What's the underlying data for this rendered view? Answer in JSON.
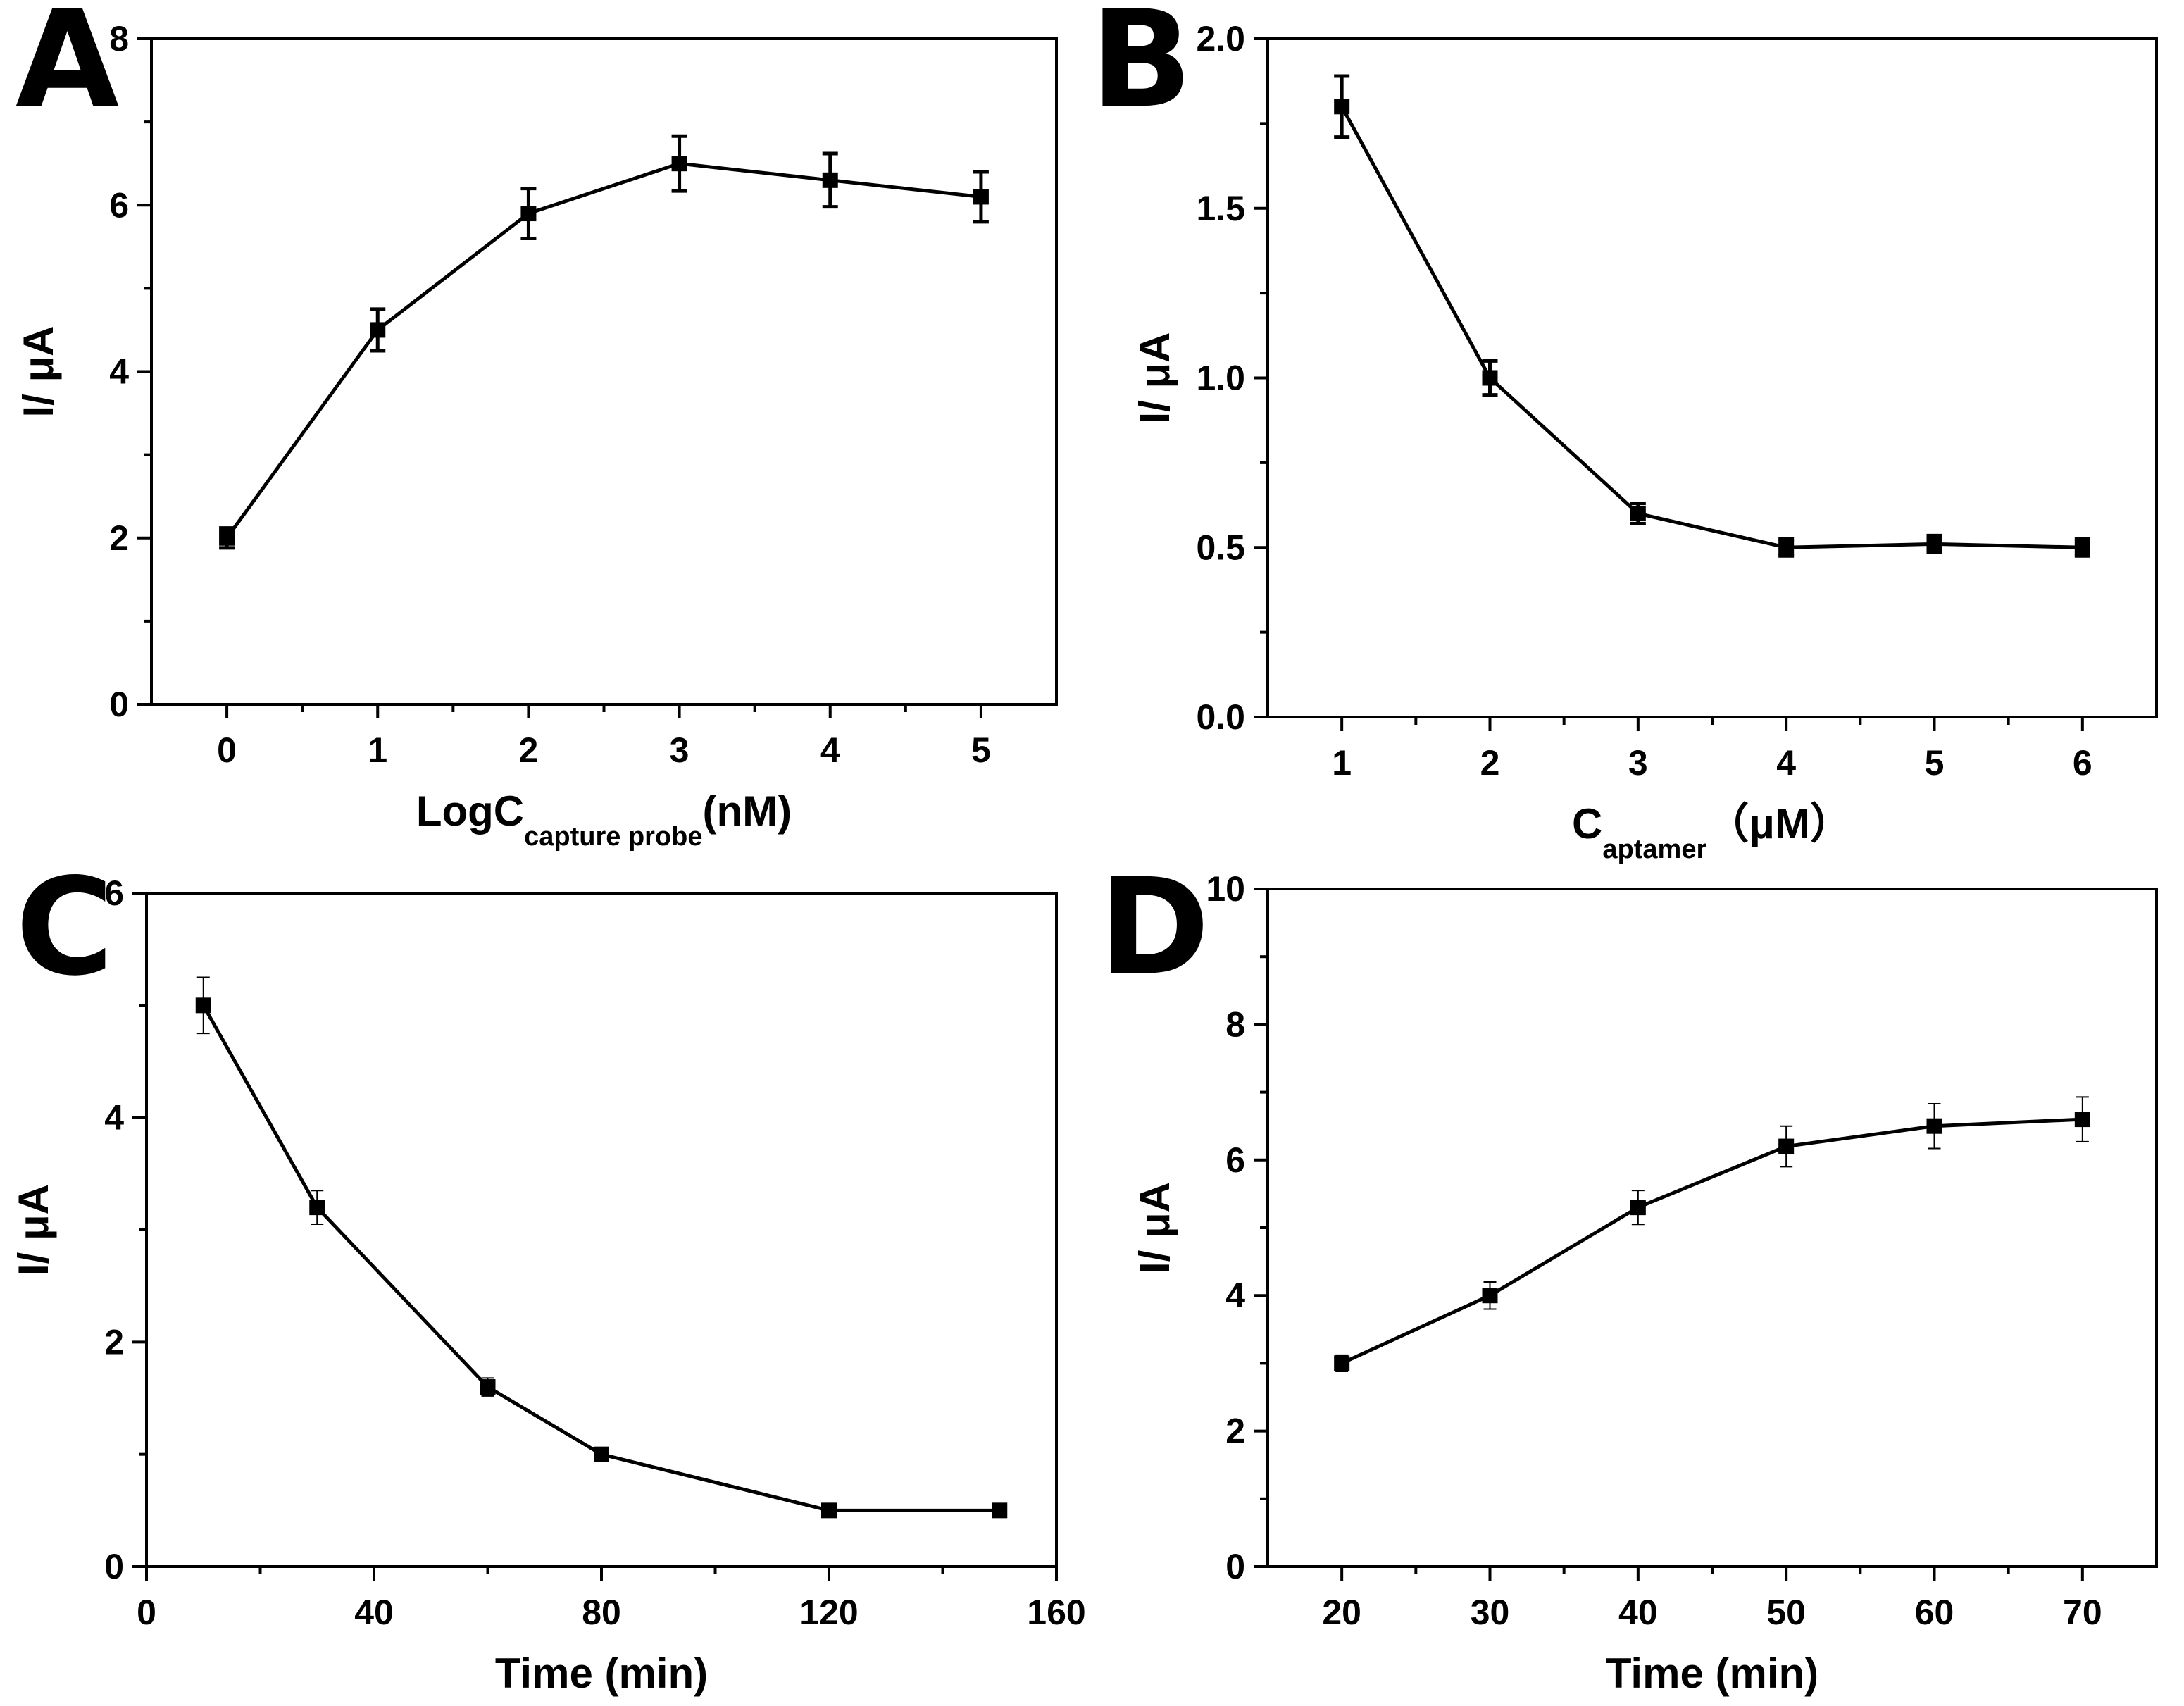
{
  "chart_data": [
    {
      "panel": "A",
      "type": "line",
      "x": [
        0,
        1,
        2,
        3,
        4,
        5
      ],
      "series": [
        {
          "name": "",
          "values": [
            2.0,
            4.5,
            5.9,
            6.5,
            6.3,
            6.1
          ],
          "errors": [
            0.12,
            0.25,
            0.3,
            0.33,
            0.32,
            0.3
          ]
        }
      ],
      "xlim": [
        -0.5,
        5.5
      ],
      "ylim": [
        0,
        8
      ],
      "xticks": [
        0,
        1,
        2,
        3,
        4,
        5
      ],
      "xtick_labels": [
        "0",
        "1",
        "2",
        "3",
        "4",
        "5"
      ],
      "yticks": [
        0,
        2,
        4,
        6,
        8
      ],
      "ytick_labels": [
        "0",
        "2",
        "4",
        "6",
        "8"
      ],
      "xlabel_main": "LogC",
      "xlabel_sub": "capture probe",
      "xlabel_tail": "(nM)",
      "ylabel": "I/ μA"
    },
    {
      "panel": "B",
      "type": "line",
      "x": [
        1,
        2,
        3,
        4,
        5,
        6
      ],
      "series": [
        {
          "name": "",
          "values": [
            1.8,
            1.0,
            0.6,
            0.5,
            0.51,
            0.5
          ],
          "errors": [
            0.09,
            0.05,
            0.03,
            0.025,
            0.025,
            0.025
          ]
        }
      ],
      "xlim": [
        0.5,
        6.5
      ],
      "ylim": [
        0,
        2.0
      ],
      "xticks": [
        1,
        2,
        3,
        4,
        5,
        6
      ],
      "xtick_labels": [
        "1",
        "2",
        "3",
        "4",
        "5",
        "6"
      ],
      "yticks": [
        0,
        0.5,
        1.0,
        1.5,
        2.0
      ],
      "ytick_labels": [
        "0.0",
        "0.5",
        "1.0",
        "1.5",
        "2.0"
      ],
      "xlabel_main": "C",
      "xlabel_sub": "aptamer",
      "xlabel_tail": "（μM）",
      "ylabel": "I/ μA"
    },
    {
      "panel": "C",
      "type": "line",
      "x": [
        10,
        30,
        60,
        80,
        120,
        150
      ],
      "series": [
        {
          "name": "",
          "values": [
            5.0,
            3.2,
            1.6,
            1.0,
            0.5,
            0.5
          ],
          "errors": [
            0.25,
            0.15,
            0.08,
            0.05,
            0.03,
            0.03
          ]
        }
      ],
      "xlim": [
        0,
        160
      ],
      "ylim": [
        0,
        6
      ],
      "xticks": [
        0,
        40,
        80,
        120,
        160
      ],
      "xtick_labels": [
        "0",
        "40",
        "80",
        "120",
        "160"
      ],
      "yticks": [
        0,
        2,
        4,
        6
      ],
      "ytick_labels": [
        "0",
        "2",
        "4",
        "6"
      ],
      "xlabel_main": "Time (min)",
      "xlabel_sub": "",
      "xlabel_tail": "",
      "ylabel": "I/ μA"
    },
    {
      "panel": "D",
      "type": "line",
      "x": [
        20,
        30,
        40,
        50,
        60,
        70
      ],
      "series": [
        {
          "name": "",
          "values": [
            3.0,
            4.0,
            5.3,
            6.2,
            6.5,
            6.6
          ],
          "errors": [
            0.12,
            0.2,
            0.25,
            0.3,
            0.33,
            0.33
          ]
        }
      ],
      "xlim": [
        15,
        75
      ],
      "ylim": [
        0,
        10
      ],
      "xticks": [
        20,
        30,
        40,
        50,
        60,
        70
      ],
      "xtick_labels": [
        "20",
        "30",
        "40",
        "50",
        "60",
        "70"
      ],
      "yticks": [
        0,
        2,
        4,
        6,
        8,
        10
      ],
      "ytick_labels": [
        "0",
        "2",
        "4",
        "6",
        "8",
        "10"
      ],
      "xlabel_main": "Time (min)",
      "xlabel_sub": "",
      "xlabel_tail": "",
      "ylabel": "I/ μA"
    }
  ]
}
